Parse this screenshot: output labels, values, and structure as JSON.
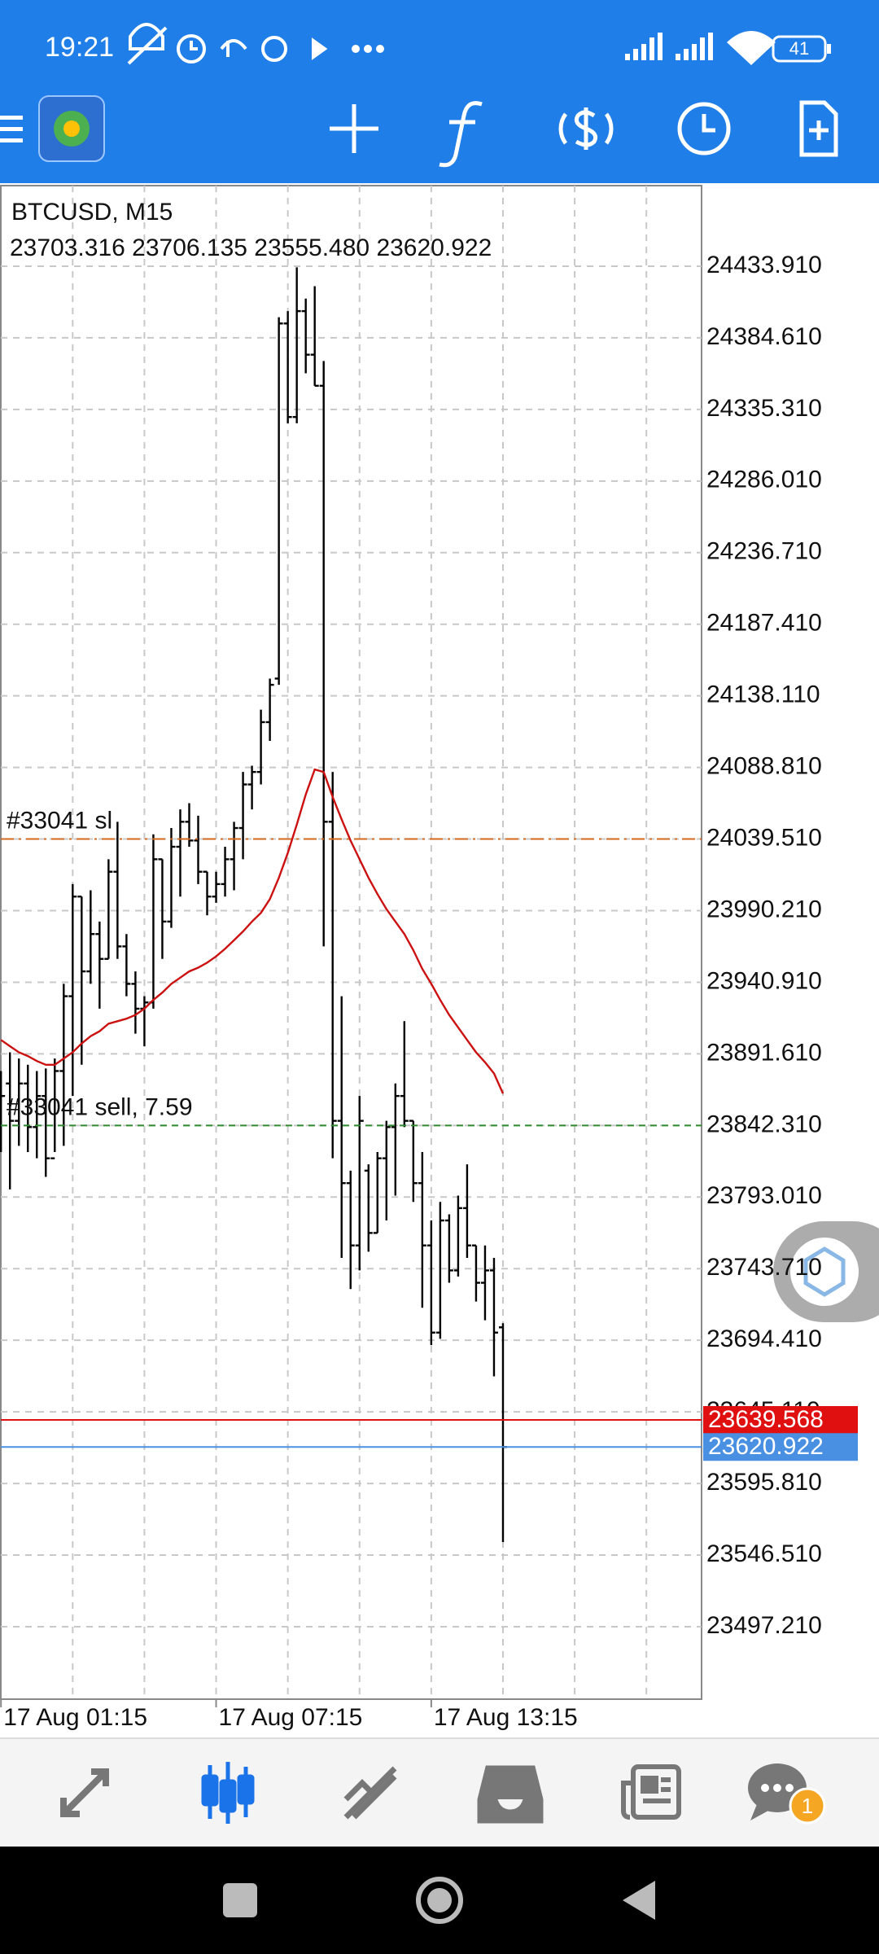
{
  "status_bar": {
    "time": "19:21",
    "battery": "41"
  },
  "chart_data": {
    "type": "ohlc",
    "title": "BTCUSD, M15",
    "subtitle": "23703.316 23706.135 23555.480 23620.922",
    "color": "#000000",
    "categories": [
      "17 Aug 01:15",
      null,
      null,
      null,
      null,
      null,
      null,
      null,
      null,
      null,
      null,
      null,
      null,
      null,
      null,
      null,
      null,
      null,
      null,
      null,
      null,
      null,
      null,
      null,
      "17 Aug 07:15",
      null,
      null,
      null,
      null,
      null,
      null,
      null,
      null,
      null,
      null,
      null,
      null,
      null,
      null,
      null,
      null,
      null,
      null,
      null,
      null,
      null,
      null,
      null,
      "17 Aug 13:15",
      null,
      null,
      null,
      null,
      null,
      null,
      null,
      null
    ],
    "open": [
      23845.5,
      23871.2,
      23845.5,
      23871.2,
      23841.2,
      23862.6,
      23819.7,
      23879.8,
      23931.3,
      23999.9,
      23948.4,
      23974.1,
      23957.0,
      24017.0,
      23965.6,
      23939.8,
      23922.7,
      23927.0,
      24025.6,
      23982.7,
      24034.2,
      24051.4,
      24038.5,
      24017.0,
      23999.9,
      24008.5,
      24025.6,
      24047.1,
      24077.1,
      24085.7,
      24120.0,
      24150.0,
      24394.5,
      24330.1,
      24403.0,
      24373.0,
      24351.6,
      24051.4,
      23845.5,
      23802.6,
      23759.7,
      23811.2,
      23768.3,
      23819.7,
      23841.2,
      23862.6,
      23845.5,
      23802.6,
      23759.7,
      23699.7,
      23776.9,
      23742.5,
      23785.4,
      23759.7,
      23734.0,
      23742.5,
      23703.316
    ],
    "high": [
      23879.8,
      23892.7,
      23888.4,
      23884.1,
      23879.8,
      23881.5,
      23888.4,
      23939.8,
      24008.5,
      23999.9,
      24004.2,
      23982.7,
      24025.6,
      24051.4,
      23974.1,
      23948.4,
      23931.3,
      24042.8,
      24025.6,
      24047.1,
      24059.9,
      24064.2,
      24055.6,
      24017.0,
      24017.0,
      24034.2,
      24051.4,
      24085.7,
      24090.0,
      24128.6,
      24150.0,
      24398.8,
      24403.0,
      24433.1,
      24411.6,
      24420.2,
      24368.7,
      24085.7,
      23931.3,
      23811.2,
      23862.6,
      23815.5,
      23824.0,
      23845.5,
      23871.2,
      23914.1,
      23845.5,
      23824.0,
      23776.9,
      23789.7,
      23781.1,
      23794.0,
      23815.5,
      23759.7,
      23759.7,
      23751.1,
      23706.135
    ],
    "low": [
      23824.0,
      23798.3,
      23828.3,
      23824.0,
      23819.7,
      23806.9,
      23824.0,
      23828.3,
      23862.6,
      23884.1,
      23939.8,
      23922.7,
      23957.0,
      23957.0,
      23931.3,
      23905.5,
      23896.9,
      23922.7,
      23957.0,
      23978.4,
      23999.9,
      24034.2,
      24008.5,
      23987.0,
      23995.6,
      23999.9,
      24004.2,
      24025.6,
      24059.9,
      24077.1,
      24107.1,
      24145.7,
      24325.8,
      24325.8,
      24360.2,
      24351.6,
      23965.6,
      23819.7,
      23751.1,
      23729.7,
      23742.5,
      23755.4,
      23768.3,
      23776.9,
      23794.0,
      23841.2,
      23789.7,
      23716.8,
      23691.1,
      23695.4,
      23734.0,
      23738.3,
      23751.1,
      23721.1,
      23708.2,
      23669.6,
      23555.48
    ],
    "close": [
      23862.6,
      23845.5,
      23871.2,
      23841.2,
      23862.6,
      23819.7,
      23879.8,
      23931.3,
      23999.9,
      23948.4,
      23974.1,
      23957.0,
      24017.0,
      23965.6,
      23939.8,
      23922.7,
      23927.0,
      24025.6,
      23982.7,
      24034.2,
      24051.4,
      24038.5,
      24017.0,
      23999.9,
      24008.5,
      24025.6,
      24047.1,
      24077.1,
      24085.7,
      24120.0,
      24145.7,
      24394.5,
      24330.1,
      24403.0,
      24373.0,
      24351.6,
      24051.4,
      23845.5,
      23802.6,
      23759.7,
      23845.5,
      23768.3,
      23819.7,
      23841.2,
      23862.6,
      23845.5,
      23802.6,
      23759.7,
      23699.7,
      23776.9,
      23742.5,
      23785.4,
      23759.7,
      23734.0,
      23742.5,
      23699.7,
      23620.922
    ],
    "moving_average": {
      "color": "#cc1111",
      "values": [
        23901.2,
        23896.9,
        23892.7,
        23890.1,
        23886.7,
        23884.1,
        23884.1,
        23888.4,
        23892.7,
        23898.7,
        23903.8,
        23907.2,
        23912.4,
        23914.1,
        23915.8,
        23918.4,
        23922.7,
        23928.7,
        23933.8,
        23939.8,
        23944.1,
        23948.4,
        23951.0,
        23954.4,
        23958.7,
        23963.9,
        23969.9,
        23975.9,
        23982.7,
        23988.7,
        23998.2,
        24012.8,
        24029.9,
        24049.6,
        24070.2,
        24087.4,
        24085.7,
        24068.5,
        24053.1,
        24038.5,
        24025.6,
        24012.8,
        24001.6,
        23991.3,
        23982.7,
        23974.1,
        23963.0,
        23950.1,
        23939.8,
        23928.7,
        23918.4,
        23909.8,
        23901.2,
        23892.7,
        23885.8,
        23878.1,
        23864.3
      ]
    },
    "ylim": [
      23447.3,
      24489.4
    ],
    "yticks": [
      {
        "value": 24433.91,
        "label": "24433.910"
      },
      {
        "value": 24384.61,
        "label": "24384.610"
      },
      {
        "value": 24335.31,
        "label": "24335.310"
      },
      {
        "value": 24286.01,
        "label": "24286.010"
      },
      {
        "value": 24236.71,
        "label": "24236.710"
      },
      {
        "value": 24187.41,
        "label": "24187.410"
      },
      {
        "value": 24138.11,
        "label": "24138.110"
      },
      {
        "value": 24088.81,
        "label": "24088.810"
      },
      {
        "value": 24039.51,
        "label": "24039.510"
      },
      {
        "value": 23990.21,
        "label": "23990.210"
      },
      {
        "value": 23940.91,
        "label": "23940.910"
      },
      {
        "value": 23891.61,
        "label": "23891.610"
      },
      {
        "value": 23842.31,
        "label": "23842.310"
      },
      {
        "value": 23793.01,
        "label": "23793.010"
      },
      {
        "value": 23743.71,
        "label": "23743.710"
      },
      {
        "value": 23694.41,
        "label": "23694.410"
      },
      {
        "value": 23645.11,
        "label": "23645.110"
      },
      {
        "value": 23595.81,
        "label": "23595.810"
      },
      {
        "value": 23546.51,
        "label": "23546.510"
      },
      {
        "value": 23497.21,
        "label": "23497.210"
      }
    ],
    "grid": true,
    "lines": [
      {
        "label": "#33041 sl",
        "value": 24039.51,
        "color": "#d2691e",
        "style": "dash-dot"
      },
      {
        "label": "#33041 sell, 7.59",
        "value": 23842.31,
        "color": "#2e8b2e",
        "style": "dashed"
      },
      {
        "value": 23639.568,
        "color": "#e01010",
        "style": "solid"
      },
      {
        "value": 23620.922,
        "color": "#4a90e2",
        "style": "solid"
      }
    ]
  },
  "bottom_nav": {
    "badge": "1"
  }
}
